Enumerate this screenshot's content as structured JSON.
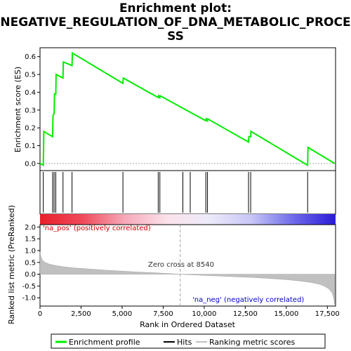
{
  "chart_data": {
    "type": "line",
    "title_lines": [
      "Enrichment plot:",
      "NEGATIVE_REGULATION_OF_DNA_METABOLIC_PROCE",
      "SS"
    ],
    "xlabel": "Rank in Ordered Dataset",
    "xlim": [
      0,
      18000
    ],
    "x_ticks": [
      0,
      2500,
      5000,
      7500,
      10000,
      12500,
      15000,
      17500
    ],
    "x_tick_labels": [
      "0",
      "2,500",
      "5,000",
      "7,500",
      "10,000",
      "12,500",
      "15,000",
      "17,500"
    ],
    "top_panel": {
      "ylabel": "Enrichment score (ES)",
      "ylim": [
        -0.04,
        0.65
      ],
      "y_ticks": [
        0.0,
        0.1,
        0.2,
        0.3,
        0.4,
        0.5,
        0.6
      ],
      "y_tick_labels": [
        "0.0",
        "0.1",
        "0.2",
        "0.3",
        "0.4",
        "0.5",
        "0.6"
      ],
      "series": [
        {
          "name": "Enrichment profile",
          "color": "#00ee00",
          "x": [
            0,
            200,
            230,
            770,
            790,
            860,
            880,
            960,
            980,
            1400,
            1420,
            1950,
            1970,
            5050,
            5070,
            7200,
            7220,
            7300,
            7320,
            10100,
            10120,
            10200,
            10220,
            12700,
            12720,
            12830,
            12850,
            16300,
            16320,
            17950
          ],
          "y": [
            0.0,
            -0.01,
            0.18,
            0.15,
            0.27,
            0.28,
            0.39,
            0.39,
            0.5,
            0.48,
            0.57,
            0.55,
            0.62,
            0.45,
            0.48,
            0.37,
            0.38,
            0.37,
            0.38,
            0.24,
            0.25,
            0.24,
            0.25,
            0.12,
            0.15,
            0.15,
            0.18,
            -0.01,
            0.09,
            0.0
          ]
        }
      ]
    },
    "hits": [
      200,
      770,
      860,
      960,
      1400,
      1950,
      5050,
      7200,
      7300,
      8700,
      9150,
      10100,
      10200,
      12700,
      12830,
      16300
    ],
    "hits_label": "Hits",
    "gradient_stops": [
      "#e8202a",
      "#f04a5a",
      "#f6a8b8",
      "#fbe2ea",
      "#ecebfa",
      "#c8c6f6",
      "#6e6aea",
      "#2a1ad8"
    ],
    "bottom_panel": {
      "ylabel": "Ranked list metric (PreRanked)",
      "ylim": [
        -1.35,
        2.1
      ],
      "y_ticks": [
        -1.0,
        -0.5,
        0.0,
        0.5,
        1.0,
        1.5,
        2.0
      ],
      "y_tick_labels": [
        "-1.0",
        "-0.5",
        "0.0",
        "0.5",
        "1.0",
        "1.5",
        "2.0"
      ],
      "metric_curve": {
        "x": [
          0,
          50,
          150,
          300,
          600,
          1000,
          1500,
          2000,
          3000,
          4000,
          5000,
          6000,
          7000,
          8000,
          8540,
          9000,
          10000,
          11000,
          12000,
          13000,
          14000,
          15000,
          16000,
          16500,
          17000,
          17300,
          17600,
          17800,
          17900,
          17950
        ],
        "y": [
          0.95,
          0.75,
          0.6,
          0.5,
          0.42,
          0.36,
          0.31,
          0.27,
          0.22,
          0.17,
          0.13,
          0.09,
          0.06,
          0.02,
          0.0,
          -0.02,
          -0.05,
          -0.08,
          -0.11,
          -0.14,
          -0.18,
          -0.23,
          -0.3,
          -0.35,
          -0.42,
          -0.5,
          -0.62,
          -0.8,
          -1.05,
          -1.3
        ]
      },
      "label_pos": "'na_pos' (positively correlated)",
      "label_neg": "'na_neg' (negatively correlated)",
      "zero_cross_label": "Zero cross at 8540",
      "zero_cross": 8540
    },
    "legend": [
      {
        "label": "Enrichment profile",
        "color": "#00ee00"
      },
      {
        "label": "Hits",
        "color": "#000000"
      },
      {
        "label": "Ranking metric scores",
        "color": "#c0c0c0"
      }
    ]
  }
}
